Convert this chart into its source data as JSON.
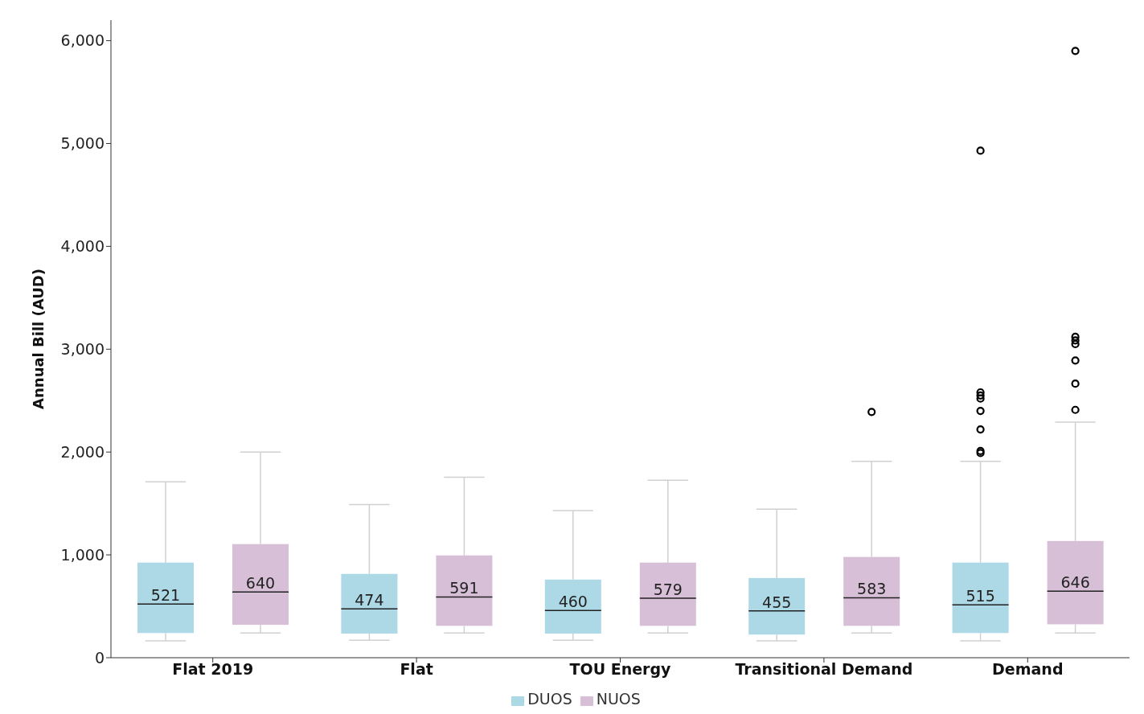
{
  "chart_data": {
    "type": "box",
    "ylabel": "Annual Bill (AUD)",
    "categories": [
      "Flat 2019",
      "Flat",
      "TOU Energy",
      "Transitional Demand",
      "Demand"
    ],
    "series": [
      {
        "name": "DUOS",
        "color": "#add8e6",
        "value_labels": [
          "521",
          "474",
          "460",
          "455",
          "515"
        ],
        "boxes": [
          {
            "low": 165,
            "q1": 240,
            "median": 521,
            "q3": 925,
            "high": 1710
          },
          {
            "low": 170,
            "q1": 235,
            "median": 474,
            "q3": 815,
            "high": 1490
          },
          {
            "low": 170,
            "q1": 235,
            "median": 460,
            "q3": 760,
            "high": 1430
          },
          {
            "low": 165,
            "q1": 225,
            "median": 455,
            "q3": 775,
            "high": 1445
          },
          {
            "low": 165,
            "q1": 240,
            "median": 515,
            "q3": 925,
            "high": 1910,
            "outliers": [
              1990,
              2010,
              2220,
              2400,
              2520,
              2550,
              2580,
              4930
            ]
          }
        ]
      },
      {
        "name": "NUOS",
        "color": "#d8bfd8",
        "value_labels": [
          "640",
          "591",
          "579",
          "583",
          "646"
        ],
        "boxes": [
          {
            "low": 240,
            "q1": 320,
            "median": 640,
            "q3": 1105,
            "high": 2000
          },
          {
            "low": 240,
            "q1": 310,
            "median": 591,
            "q3": 995,
            "high": 1755
          },
          {
            "low": 240,
            "q1": 310,
            "median": 579,
            "q3": 925,
            "high": 1725
          },
          {
            "low": 240,
            "q1": 310,
            "median": 583,
            "q3": 980,
            "high": 1910,
            "outliers": [
              2390
            ]
          },
          {
            "low": 240,
            "q1": 325,
            "median": 646,
            "q3": 1135,
            "high": 2290,
            "outliers": [
              2410,
              2665,
              2890,
              3050,
              3085,
              3120,
              5900
            ]
          }
        ]
      }
    ],
    "ylim": [
      0,
      6200
    ],
    "yticks": [
      0,
      {
        "value": 1000,
        "label": "1,000"
      },
      {
        "value": 2000,
        "label": "2,000"
      },
      {
        "value": 3000,
        "label": "3,000"
      },
      {
        "value": 4000,
        "label": "4,000"
      },
      {
        "value": 5000,
        "label": "5,000"
      },
      {
        "value": 6000,
        "label": "6,000"
      }
    ],
    "legend": "bottom"
  }
}
